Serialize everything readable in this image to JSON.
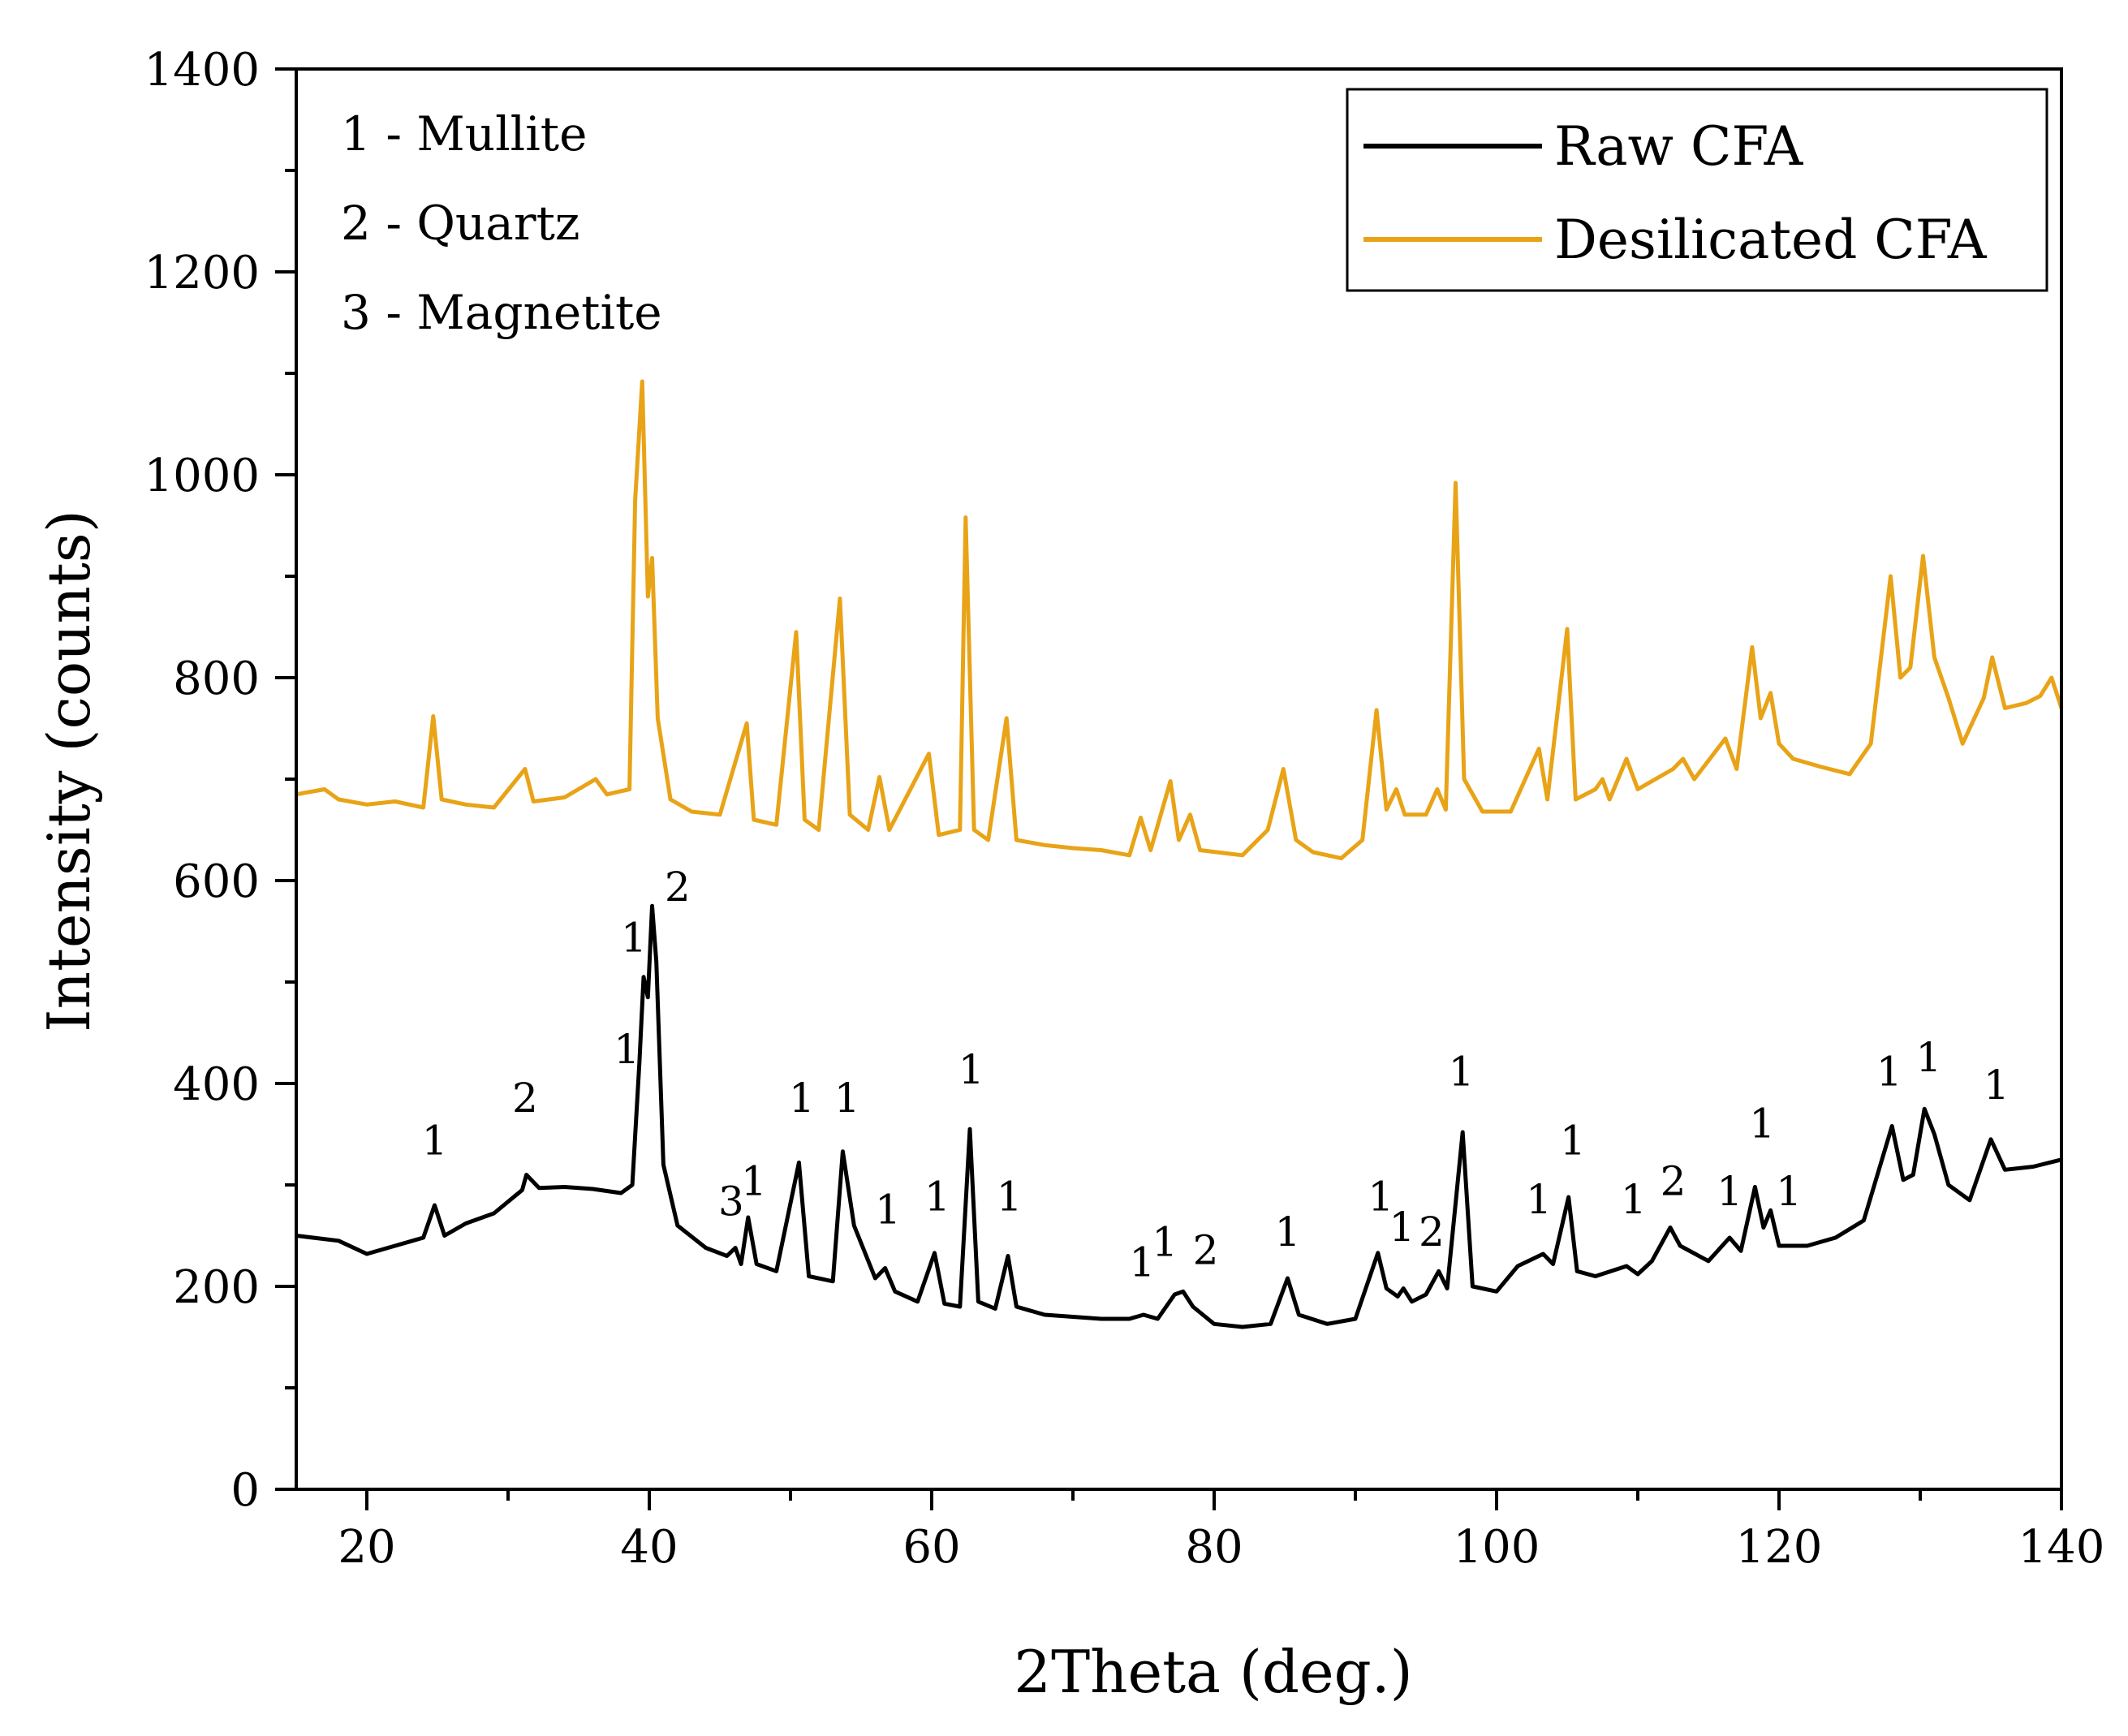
{
  "chart_data": {
    "type": "line",
    "xlabel": "2Theta (deg.)",
    "ylabel": "Intensity (counts)",
    "xlim": [
      15,
      140
    ],
    "ylim": [
      0,
      1400
    ],
    "x_ticks": [
      20,
      40,
      60,
      80,
      100,
      120,
      140
    ],
    "y_ticks": [
      0,
      200,
      400,
      600,
      800,
      1000,
      1200,
      1400
    ],
    "legend_position": "top-right",
    "phase_key": [
      "1 - Mullite",
      "2 - Quartz",
      "3 - Magnetite"
    ],
    "colors": {
      "raw": "#000000",
      "desilicated": "#E8A317"
    },
    "series": [
      {
        "name": "Raw CFA",
        "color": "#000000",
        "points": [
          [
            15,
            250
          ],
          [
            18,
            245
          ],
          [
            20,
            232
          ],
          [
            22,
            240
          ],
          [
            24,
            248
          ],
          [
            24.8,
            280
          ],
          [
            25.5,
            250
          ],
          [
            27,
            262
          ],
          [
            29,
            272
          ],
          [
            31,
            295
          ],
          [
            31.3,
            310
          ],
          [
            32.2,
            297
          ],
          [
            34,
            298
          ],
          [
            36,
            296
          ],
          [
            38,
            292
          ],
          [
            38.8,
            300
          ],
          [
            39.3,
            420
          ],
          [
            39.6,
            505
          ],
          [
            39.9,
            485
          ],
          [
            40.2,
            575
          ],
          [
            40.5,
            520
          ],
          [
            41,
            320
          ],
          [
            42,
            260
          ],
          [
            44,
            238
          ],
          [
            45.5,
            230
          ],
          [
            46.1,
            238
          ],
          [
            46.5,
            222
          ],
          [
            47,
            268
          ],
          [
            47.6,
            222
          ],
          [
            49,
            215
          ],
          [
            50.6,
            322
          ],
          [
            51.3,
            210
          ],
          [
            53,
            205
          ],
          [
            53.7,
            333
          ],
          [
            54.5,
            260
          ],
          [
            56,
            208
          ],
          [
            56.7,
            218
          ],
          [
            57.4,
            195
          ],
          [
            59,
            185
          ],
          [
            60.2,
            233
          ],
          [
            60.9,
            183
          ],
          [
            62,
            180
          ],
          [
            62.7,
            355
          ],
          [
            63.3,
            185
          ],
          [
            64.5,
            178
          ],
          [
            65.4,
            230
          ],
          [
            66,
            180
          ],
          [
            68,
            172
          ],
          [
            70,
            170
          ],
          [
            72,
            168
          ],
          [
            74,
            168
          ],
          [
            75,
            172
          ],
          [
            76,
            168
          ],
          [
            77.2,
            192
          ],
          [
            77.8,
            195
          ],
          [
            78.5,
            180
          ],
          [
            80,
            163
          ],
          [
            82,
            160
          ],
          [
            84,
            163
          ],
          [
            85.2,
            208
          ],
          [
            86,
            172
          ],
          [
            88,
            163
          ],
          [
            90,
            168
          ],
          [
            91.6,
            233
          ],
          [
            92.2,
            198
          ],
          [
            93,
            190
          ],
          [
            93.4,
            198
          ],
          [
            94,
            185
          ],
          [
            95,
            192
          ],
          [
            95.9,
            215
          ],
          [
            96.5,
            198
          ],
          [
            97.6,
            352
          ],
          [
            98.3,
            200
          ],
          [
            100,
            195
          ],
          [
            101.5,
            220
          ],
          [
            103.3,
            232
          ],
          [
            104,
            222
          ],
          [
            105.1,
            288
          ],
          [
            105.7,
            215
          ],
          [
            107,
            210
          ],
          [
            109.2,
            220
          ],
          [
            110,
            212
          ],
          [
            111,
            225
          ],
          [
            112.3,
            258
          ],
          [
            113,
            240
          ],
          [
            115,
            225
          ],
          [
            116.5,
            248
          ],
          [
            117.3,
            235
          ],
          [
            118.3,
            298
          ],
          [
            118.9,
            258
          ],
          [
            119.4,
            275
          ],
          [
            120,
            240
          ],
          [
            122,
            240
          ],
          [
            124,
            248
          ],
          [
            126,
            265
          ],
          [
            128,
            358
          ],
          [
            128.8,
            305
          ],
          [
            129.5,
            310
          ],
          [
            130.3,
            375
          ],
          [
            131,
            350
          ],
          [
            132,
            300
          ],
          [
            133.5,
            285
          ],
          [
            135,
            345
          ],
          [
            136,
            315
          ],
          [
            138,
            318
          ],
          [
            140,
            325
          ]
        ]
      },
      {
        "name": "Desilicated CFA",
        "color": "#E8A317",
        "points": [
          [
            15,
            685
          ],
          [
            17,
            690
          ],
          [
            18,
            680
          ],
          [
            20,
            675
          ],
          [
            22,
            678
          ],
          [
            24,
            672
          ],
          [
            24.7,
            762
          ],
          [
            25.3,
            680
          ],
          [
            27,
            675
          ],
          [
            29,
            672
          ],
          [
            31.2,
            710
          ],
          [
            31.8,
            678
          ],
          [
            34,
            682
          ],
          [
            36.2,
            700
          ],
          [
            37,
            685
          ],
          [
            38.6,
            690
          ],
          [
            39,
            975
          ],
          [
            39.5,
            1092
          ],
          [
            39.9,
            880
          ],
          [
            40.2,
            918
          ],
          [
            40.6,
            760
          ],
          [
            41.5,
            680
          ],
          [
            43,
            668
          ],
          [
            45,
            665
          ],
          [
            46.9,
            755
          ],
          [
            47.4,
            660
          ],
          [
            49,
            655
          ],
          [
            50.4,
            845
          ],
          [
            51,
            660
          ],
          [
            52,
            650
          ],
          [
            53.5,
            878
          ],
          [
            54.2,
            665
          ],
          [
            55.5,
            650
          ],
          [
            56.3,
            702
          ],
          [
            57,
            650
          ],
          [
            59.8,
            725
          ],
          [
            60.5,
            645
          ],
          [
            62,
            650
          ],
          [
            62.4,
            958
          ],
          [
            63,
            650
          ],
          [
            64,
            640
          ],
          [
            65.3,
            760
          ],
          [
            66,
            640
          ],
          [
            68,
            635
          ],
          [
            70,
            632
          ],
          [
            72,
            630
          ],
          [
            74,
            625
          ],
          [
            74.8,
            662
          ],
          [
            75.5,
            630
          ],
          [
            76.9,
            698
          ],
          [
            77.5,
            640
          ],
          [
            78.3,
            665
          ],
          [
            79,
            630
          ],
          [
            82,
            625
          ],
          [
            83.8,
            650
          ],
          [
            84.9,
            710
          ],
          [
            85.8,
            640
          ],
          [
            87,
            628
          ],
          [
            89,
            622
          ],
          [
            90.5,
            640
          ],
          [
            91.5,
            768
          ],
          [
            92.2,
            670
          ],
          [
            92.9,
            690
          ],
          [
            93.5,
            665
          ],
          [
            95,
            665
          ],
          [
            95.8,
            690
          ],
          [
            96.4,
            670
          ],
          [
            97.1,
            992
          ],
          [
            97.7,
            700
          ],
          [
            99,
            668
          ],
          [
            101,
            668
          ],
          [
            103,
            730
          ],
          [
            103.6,
            680
          ],
          [
            105,
            848
          ],
          [
            105.6,
            680
          ],
          [
            107,
            690
          ],
          [
            107.5,
            700
          ],
          [
            108,
            680
          ],
          [
            109.2,
            720
          ],
          [
            110,
            690
          ],
          [
            112.5,
            710
          ],
          [
            113.2,
            720
          ],
          [
            114,
            700
          ],
          [
            116.2,
            740
          ],
          [
            117,
            710
          ],
          [
            118.1,
            830
          ],
          [
            118.7,
            760
          ],
          [
            119.4,
            785
          ],
          [
            120,
            735
          ],
          [
            121,
            720
          ],
          [
            123,
            712
          ],
          [
            125,
            705
          ],
          [
            126.5,
            735
          ],
          [
            127.9,
            900
          ],
          [
            128.6,
            800
          ],
          [
            129.3,
            810
          ],
          [
            130.2,
            920
          ],
          [
            131,
            820
          ],
          [
            132,
            780
          ],
          [
            133,
            735
          ],
          [
            134.5,
            780
          ],
          [
            135.1,
            820
          ],
          [
            136,
            770
          ],
          [
            137.5,
            775
          ],
          [
            138.5,
            782
          ],
          [
            139.3,
            800
          ],
          [
            140,
            770
          ]
        ]
      }
    ],
    "peak_labels": [
      {
        "text": "1",
        "x": 24.8,
        "y": 330
      },
      {
        "text": "2",
        "x": 31.2,
        "y": 372
      },
      {
        "text": "1",
        "x": 38.4,
        "y": 420
      },
      {
        "text": "1",
        "x": 38.9,
        "y": 530
      },
      {
        "text": "2",
        "x": 42,
        "y": 580
      },
      {
        "text": "3",
        "x": 45.8,
        "y": 270
      },
      {
        "text": "1",
        "x": 47.4,
        "y": 290
      },
      {
        "text": "1",
        "x": 50.8,
        "y": 372
      },
      {
        "text": "1",
        "x": 54,
        "y": 372
      },
      {
        "text": "1",
        "x": 56.9,
        "y": 262
      },
      {
        "text": "1",
        "x": 60.4,
        "y": 275
      },
      {
        "text": "1",
        "x": 62.8,
        "y": 400
      },
      {
        "text": "1",
        "x": 65.5,
        "y": 275
      },
      {
        "text": "1",
        "x": 74.9,
        "y": 210
      },
      {
        "text": "1",
        "x": 76.5,
        "y": 230
      },
      {
        "text": "2",
        "x": 79.4,
        "y": 222
      },
      {
        "text": "1",
        "x": 85.2,
        "y": 240
      },
      {
        "text": "1",
        "x": 91.8,
        "y": 275
      },
      {
        "text": "1",
        "x": 93.3,
        "y": 245
      },
      {
        "text": "2",
        "x": 95.4,
        "y": 240
      },
      {
        "text": "1",
        "x": 97.5,
        "y": 398
      },
      {
        "text": "1",
        "x": 103,
        "y": 272
      },
      {
        "text": "1",
        "x": 105.4,
        "y": 330
      },
      {
        "text": "1",
        "x": 109.7,
        "y": 272
      },
      {
        "text": "2",
        "x": 112.5,
        "y": 290
      },
      {
        "text": "1",
        "x": 116.5,
        "y": 280
      },
      {
        "text": "1",
        "x": 118.8,
        "y": 347
      },
      {
        "text": "1",
        "x": 120.7,
        "y": 280
      },
      {
        "text": "1",
        "x": 127.8,
        "y": 398
      },
      {
        "text": "1",
        "x": 130.6,
        "y": 412
      },
      {
        "text": "1",
        "x": 135.4,
        "y": 385
      }
    ]
  }
}
